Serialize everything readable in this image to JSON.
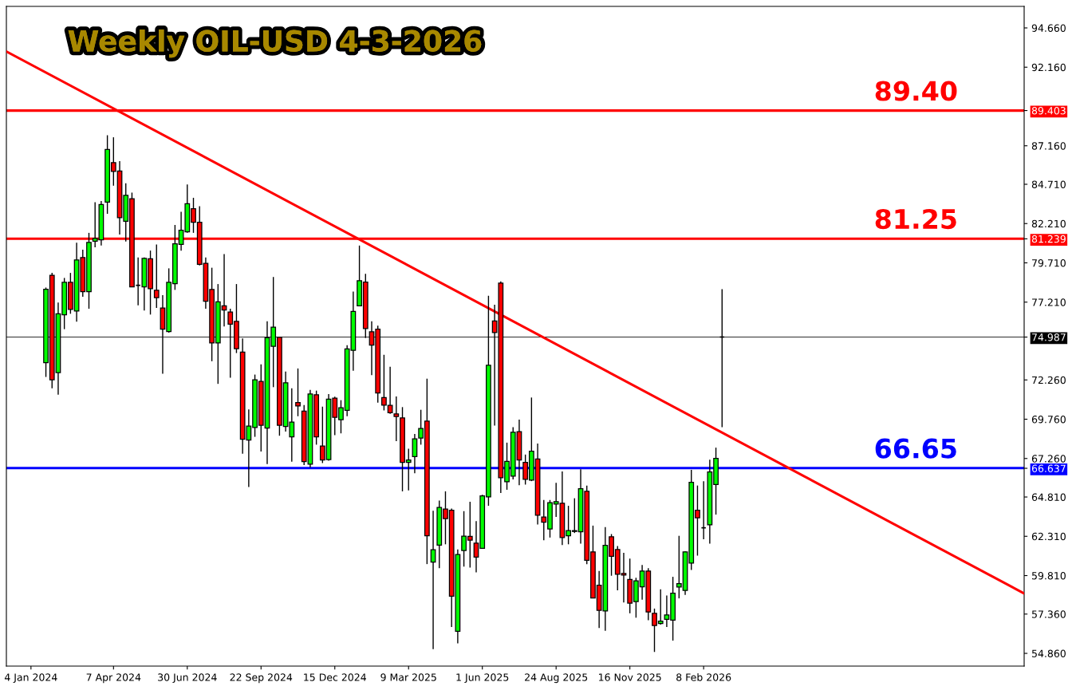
{
  "chart_data": {
    "type": "candlestick",
    "title": "Weekly OIL-USD 4-3-2026",
    "x": [
      "2024-01-21",
      "2024-01-28",
      "2024-02-04",
      "2024-02-11",
      "2024-02-18",
      "2024-02-25",
      "2024-03-03",
      "2024-03-10",
      "2024-03-17",
      "2024-03-24",
      "2024-03-31",
      "2024-04-07",
      "2024-04-14",
      "2024-04-21",
      "2024-04-28",
      "2024-05-05",
      "2024-05-12",
      "2024-05-19",
      "2024-05-26",
      "2024-06-02",
      "2024-06-09",
      "2024-06-16",
      "2024-06-23",
      "2024-06-30",
      "2024-07-07",
      "2024-07-14",
      "2024-07-21",
      "2024-07-28",
      "2024-08-04",
      "2024-08-11",
      "2024-08-18",
      "2024-08-25",
      "2024-09-01",
      "2024-09-08",
      "2024-09-15",
      "2024-09-22",
      "2024-09-29",
      "2024-10-06",
      "2024-10-13",
      "2024-10-20",
      "2024-10-27",
      "2024-11-03",
      "2024-11-10",
      "2024-11-17",
      "2024-11-24",
      "2024-12-01",
      "2024-12-08",
      "2024-12-15",
      "2024-12-22",
      "2024-12-29",
      "2025-01-05",
      "2025-01-12",
      "2025-01-19",
      "2025-01-26",
      "2025-02-02",
      "2025-02-09",
      "2025-02-16",
      "2025-02-23",
      "2025-03-02",
      "2025-03-09",
      "2025-03-16",
      "2025-03-23",
      "2025-03-30",
      "2025-04-06",
      "2025-04-13",
      "2025-04-20",
      "2025-04-27",
      "2025-05-04",
      "2025-05-11",
      "2025-05-18",
      "2025-05-25",
      "2025-06-01",
      "2025-06-08",
      "2025-06-15",
      "2025-06-22",
      "2025-06-29",
      "2025-07-06",
      "2025-07-13",
      "2025-07-20",
      "2025-07-27",
      "2025-08-03",
      "2025-08-10",
      "2025-08-17",
      "2025-08-24",
      "2025-08-31",
      "2025-09-07",
      "2025-09-14",
      "2025-09-21",
      "2025-09-28",
      "2025-10-05",
      "2025-10-12",
      "2025-10-19",
      "2025-10-26",
      "2025-11-02",
      "2025-11-09",
      "2025-11-16",
      "2025-11-23",
      "2025-11-30",
      "2025-12-07",
      "2025-12-14",
      "2025-12-21",
      "2025-12-28",
      "2026-01-04",
      "2026-01-11",
      "2026-01-18",
      "2026-01-25",
      "2026-02-01",
      "2026-02-08",
      "2026-02-15",
      "2026-02-22",
      "2026-03-01"
    ],
    "ohlc": [
      [
        73.36,
        78.14,
        72.45,
        78.03
      ],
      [
        78.92,
        79.07,
        71.73,
        72.27
      ],
      [
        72.73,
        77.18,
        71.32,
        76.47
      ],
      [
        76.4,
        78.75,
        75.49,
        78.47
      ],
      [
        78.47,
        79.07,
        76.47,
        76.75
      ],
      [
        76.64,
        80.99,
        75.97,
        79.9
      ],
      [
        80.05,
        80.55,
        77.55,
        77.88
      ],
      [
        77.88,
        81.62,
        76.79,
        81.01
      ],
      [
        81.09,
        83.57,
        80.7,
        81.27
      ],
      [
        81.18,
        83.64,
        80.81,
        83.42
      ],
      [
        83.57,
        87.83,
        82.83,
        86.92
      ],
      [
        86.09,
        87.7,
        84.62,
        85.53
      ],
      [
        85.55,
        86.18,
        81.51,
        82.59
      ],
      [
        82.36,
        84.77,
        81.07,
        84.01
      ],
      [
        83.79,
        84.18,
        78.18,
        78.18
      ],
      [
        78.28,
        80.05,
        77.01,
        78.28
      ],
      [
        78.18,
        80.05,
        76.68,
        79.99
      ],
      [
        79.97,
        80.49,
        76.42,
        78.07
      ],
      [
        77.97,
        80.88,
        76.84,
        77.49
      ],
      [
        76.84,
        77.66,
        72.66,
        75.49
      ],
      [
        75.34,
        79.36,
        75.27,
        78.47
      ],
      [
        78.38,
        82.12,
        77.99,
        80.92
      ],
      [
        80.88,
        82.96,
        80.49,
        81.79
      ],
      [
        81.68,
        84.7,
        81.62,
        83.47
      ],
      [
        83.16,
        83.85,
        81.62,
        82.29
      ],
      [
        82.29,
        83.31,
        79.55,
        79.62
      ],
      [
        79.68,
        80.05,
        76.79,
        77.27
      ],
      [
        78.01,
        79.4,
        73.45,
        74.62
      ],
      [
        74.62,
        78.36,
        72.01,
        77.23
      ],
      [
        76.97,
        80.27,
        75.66,
        76.71
      ],
      [
        76.58,
        76.79,
        72.4,
        75.81
      ],
      [
        75.99,
        78.36,
        73.97,
        74.25
      ],
      [
        74.03,
        74.9,
        67.56,
        68.49
      ],
      [
        68.43,
        70.38,
        65.45,
        69.32
      ],
      [
        69.23,
        72.6,
        68.64,
        72.27
      ],
      [
        72.16,
        73.25,
        67.71,
        69.38
      ],
      [
        69.19,
        75.99,
        66.9,
        74.95
      ],
      [
        74.4,
        78.81,
        71.8,
        75.62
      ],
      [
        74.97,
        74.97,
        68.71,
        69.38
      ],
      [
        69.3,
        72.79,
        68.97,
        72.08
      ],
      [
        68.64,
        71.73,
        67.06,
        69.58
      ],
      [
        70.82,
        72.99,
        69.95,
        70.6
      ],
      [
        70.27,
        70.66,
        66.84,
        67.06
      ],
      [
        66.9,
        71.62,
        66.69,
        71.36
      ],
      [
        71.32,
        71.58,
        68.14,
        68.64
      ],
      [
        68.06,
        70.56,
        66.97,
        67.17
      ],
      [
        67.19,
        71.36,
        67.12,
        71.03
      ],
      [
        71.1,
        71.19,
        68.75,
        69.88
      ],
      [
        69.73,
        70.97,
        68.86,
        70.49
      ],
      [
        70.32,
        74.47,
        69.95,
        74.23
      ],
      [
        74.14,
        77.88,
        72.84,
        76.62
      ],
      [
        76.97,
        80.81,
        76.97,
        78.57
      ],
      [
        78.49,
        79.01,
        74.93,
        75.53
      ],
      [
        75.32,
        75.99,
        72.56,
        74.47
      ],
      [
        75.49,
        75.71,
        70.82,
        71.43
      ],
      [
        71.14,
        73.86,
        70.32,
        70.66
      ],
      [
        70.64,
        73.1,
        70.1,
        70.17
      ],
      [
        70.1,
        71.21,
        68.36,
        69.93
      ],
      [
        69.84,
        70.53,
        65.17,
        67.01
      ],
      [
        67.01,
        67.88,
        65.23,
        67.17
      ],
      [
        67.38,
        68.82,
        66.32,
        68.51
      ],
      [
        68.56,
        70.36,
        68.14,
        69.17
      ],
      [
        69.64,
        72.34,
        60.54,
        62.34
      ],
      [
        60.67,
        63.93,
        55.13,
        61.45
      ],
      [
        61.75,
        64.58,
        60.28,
        64.15
      ],
      [
        64.04,
        65.17,
        61.8,
        63.43
      ],
      [
        63.97,
        64.08,
        56.54,
        58.5
      ],
      [
        56.26,
        61.47,
        55.5,
        61.15
      ],
      [
        61.41,
        63.91,
        60.38,
        62.32
      ],
      [
        62.3,
        64.51,
        60.32,
        62.06
      ],
      [
        61.88,
        63.28,
        60.02,
        60.99
      ],
      [
        61.54,
        64.95,
        61.54,
        64.88
      ],
      [
        64.82,
        77.62,
        64.25,
        73.19
      ],
      [
        76.01,
        77.05,
        69.36,
        75.27
      ],
      [
        78.42,
        78.53,
        65.06,
        66.04
      ],
      [
        65.78,
        68.27,
        65.27,
        67.08
      ],
      [
        66.14,
        69.25,
        65.93,
        68.93
      ],
      [
        68.97,
        69.73,
        65.56,
        67.17
      ],
      [
        67.01,
        67.51,
        65.6,
        65.93
      ],
      [
        65.88,
        71.14,
        65.82,
        67.73
      ],
      [
        67.23,
        68.21,
        63.06,
        63.65
      ],
      [
        63.54,
        64.62,
        62.06,
        63.21
      ],
      [
        62.78,
        64.62,
        62.23,
        64.45
      ],
      [
        64.36,
        65.71,
        63.54,
        64.51
      ],
      [
        64.41,
        66.43,
        61.75,
        62.23
      ],
      [
        62.34,
        64.25,
        61.8,
        62.67
      ],
      [
        62.62,
        64.73,
        62.52,
        62.67
      ],
      [
        62.6,
        66.58,
        61.84,
        65.34
      ],
      [
        65.17,
        65.54,
        60.54,
        60.78
      ],
      [
        61.32,
        62.99,
        58.39,
        58.39
      ],
      [
        59.19,
        60.1,
        56.47,
        57.6
      ],
      [
        57.56,
        62.89,
        56.3,
        61.73
      ],
      [
        62.28,
        62.45,
        59.8,
        61.04
      ],
      [
        61.47,
        61.69,
        58.87,
        59.89
      ],
      [
        59.95,
        61.26,
        58.1,
        59.84
      ],
      [
        59.56,
        60.89,
        57.41,
        58.06
      ],
      [
        58.15,
        59.67,
        57.13,
        59.47
      ],
      [
        59.1,
        60.49,
        58.28,
        60.1
      ],
      [
        60.1,
        60.28,
        56.97,
        57.49
      ],
      [
        57.41,
        57.71,
        54.95,
        56.63
      ],
      [
        56.76,
        58.93,
        56.69,
        56.91
      ],
      [
        57.02,
        58.54,
        56.54,
        57.3
      ],
      [
        56.97,
        59.73,
        55.67,
        58.69
      ],
      [
        59.08,
        62.34,
        58.36,
        59.3
      ],
      [
        58.86,
        61.36,
        58.58,
        61.32
      ],
      [
        60.6,
        66.54,
        60.17,
        65.75
      ],
      [
        63.97,
        65.54,
        61.08,
        63.49
      ],
      [
        62.85,
        65.82,
        62.12,
        62.85
      ],
      [
        63.04,
        67.19,
        61.84,
        66.41
      ],
      [
        65.6,
        67.95,
        63.69,
        67.27
      ],
      [
        74.99,
        78.03,
        69.25,
        74.99
      ]
    ],
    "series": [
      {
        "type": "line",
        "color": "#ff0000",
        "x": [
          "2023-12-07",
          "2027-02-08"
        ],
        "values": [
          93.16,
          58.67
        ]
      }
    ],
    "xlim": [
      "2023-12-07",
      "2027-02-08"
    ],
    "xticks": [
      {
        "value": "2024-01-04",
        "label": "4 Jan 2024"
      },
      {
        "value": "2024-04-07",
        "label": "7 Apr 2024"
      },
      {
        "value": "2024-06-30",
        "label": "30 Jun 2024"
      },
      {
        "value": "2024-09-22",
        "label": "22 Sep 2024"
      },
      {
        "value": "2024-12-15",
        "label": "15 Dec 2024"
      },
      {
        "value": "2025-03-09",
        "label": "9 Mar 2025"
      },
      {
        "value": "2025-06-01",
        "label": "1 Jun 2025"
      },
      {
        "value": "2025-08-24",
        "label": "24 Aug 2025"
      },
      {
        "value": "2025-11-16",
        "label": "16 Nov 2025"
      },
      {
        "value": "2026-02-08",
        "label": "8 Feb 2026"
      }
    ],
    "ylim": [
      54.05,
      96.03
    ],
    "yticks": [
      {
        "value": 54.86,
        "label": "54.860"
      },
      {
        "value": 57.36,
        "label": "57.360"
      },
      {
        "value": 59.81,
        "label": "59.810"
      },
      {
        "value": 62.31,
        "label": "62.310"
      },
      {
        "value": 64.81,
        "label": "64.810"
      },
      {
        "value": 66.637,
        "label": "66.637"
      },
      {
        "value": 67.26,
        "label": "67.260"
      },
      {
        "value": 69.76,
        "label": "69.760"
      },
      {
        "value": 72.26,
        "label": "72.260"
      },
      {
        "value": 74.987,
        "label": "74.987"
      },
      {
        "value": 77.21,
        "label": "77.210"
      },
      {
        "value": 79.71,
        "label": "79.710"
      },
      {
        "value": 81.239,
        "label": "81.239"
      },
      {
        "value": 82.21,
        "label": "82.210"
      },
      {
        "value": 84.71,
        "label": "84.710"
      },
      {
        "value": 87.16,
        "label": "87.160"
      },
      {
        "value": 89.403,
        "label": "89.403"
      },
      {
        "value": 92.16,
        "label": "92.160"
      },
      {
        "value": 94.66,
        "label": "94.660"
      }
    ],
    "ref_lines": [
      {
        "axis": "y",
        "value": 89.4,
        "label": "89.40",
        "color": "#ff0000",
        "line_style": "solid"
      },
      {
        "axis": "y",
        "value": 81.25,
        "label": "81.25",
        "color": "#ff0000",
        "line_style": "solid"
      },
      {
        "axis": "y",
        "value": 66.65,
        "label": "66.65",
        "color": "#0000ff",
        "line_style": "solid"
      },
      {
        "axis": "y",
        "value": 74.987,
        "color": "#000000",
        "line_style": "solid"
      }
    ],
    "colors": [
      "#00ff00",
      "#ff0000",
      "#00ff00",
      "#00ff00",
      "#ff0000",
      "#00ff00",
      "#ff0000",
      "#00ff00",
      "#00ff00",
      "#00ff00",
      "#00ff00",
      "#ff0000",
      "#ff0000",
      "#00ff00",
      "#ff0000",
      "#000000",
      "#00ff00",
      "#ff0000",
      "#ff0000",
      "#ff0000",
      "#00ff00",
      "#00ff00",
      "#00ff00",
      "#00ff00",
      "#ff0000",
      "#ff0000",
      "#ff0000",
      "#ff0000",
      "#00ff00",
      "#ff0000",
      "#ff0000",
      "#ff0000",
      "#ff0000",
      "#00ff00",
      "#00ff00",
      "#ff0000",
      "#00ff00",
      "#00ff00",
      "#ff0000",
      "#00ff00",
      "#00ff00",
      "#ff0000",
      "#ff0000",
      "#00ff00",
      "#ff0000",
      "#ff0000",
      "#00ff00",
      "#ff0000",
      "#00ff00",
      "#00ff00",
      "#00ff00",
      "#00ff00",
      "#ff0000",
      "#ff0000",
      "#ff0000",
      "#ff0000",
      "#ff0000",
      "#ff0000",
      "#ff0000",
      "#00ff00",
      "#00ff00",
      "#00ff00",
      "#ff0000",
      "#00ff00",
      "#00ff00",
      "#ff0000",
      "#ff0000",
      "#00ff00",
      "#00ff00",
      "#ff0000",
      "#ff0000",
      "#00ff00",
      "#00ff00",
      "#ff0000",
      "#ff0000",
      "#00ff00",
      "#00ff00",
      "#ff0000",
      "#ff0000",
      "#00ff00",
      "#ff0000",
      "#ff0000",
      "#00ff00",
      "#00ff00",
      "#ff0000",
      "#00ff00",
      "#00ff00",
      "#00ff00",
      "#ff0000",
      "#ff0000",
      "#ff0000",
      "#00ff00",
      "#ff0000",
      "#ff0000",
      "#ff0000",
      "#ff0000",
      "#00ff00",
      "#00ff00",
      "#ff0000",
      "#ff0000",
      "#00ff00",
      "#00ff00",
      "#00ff00",
      "#00ff00",
      "#00ff00",
      "#00ff00",
      "#ff0000",
      "#000000",
      "#00ff00",
      "#00ff00",
      "#000000"
    ],
    "grid": false,
    "legend": false
  }
}
